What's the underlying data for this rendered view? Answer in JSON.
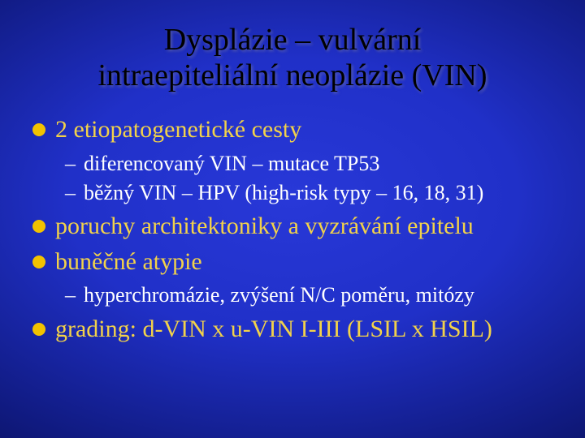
{
  "slide": {
    "background": {
      "type": "radial-gradient",
      "center_color": "#2838d8",
      "mid_color": "#101a80",
      "edge_color": "#060a40"
    },
    "title": {
      "line1": "Dysplázie – vulvární",
      "line2": "intraepiteliální neoplázie (VIN)",
      "color": "#000000",
      "fontsize": 38,
      "shadow_color": "#8888a0"
    },
    "bullets": [
      {
        "level": 1,
        "text": "2 etiopatogenetické cesty",
        "color": "#f2d24a",
        "marker": "round",
        "marker_color": "#f2c200",
        "fontsize": 30
      },
      {
        "level": 2,
        "text": "diferencovaný VIN – mutace TP53",
        "color": "#ffffff",
        "marker": "dash",
        "fontsize": 26
      },
      {
        "level": 2,
        "text": "běžný VIN – HPV (high-risk typy – 16, 18, 31)",
        "color": "#ffffff",
        "marker": "dash",
        "fontsize": 26
      },
      {
        "level": 1,
        "text": "poruchy architektoniky a vyzrávání epitelu",
        "color": "#f2d24a",
        "marker": "round",
        "marker_color": "#f2c200",
        "fontsize": 30
      },
      {
        "level": 1,
        "text": "buněčné atypie",
        "color": "#f2d24a",
        "marker": "round",
        "marker_color": "#f2c200",
        "fontsize": 30
      },
      {
        "level": 2,
        "text": "hyperchromázie, zvýšení N/C poměru, mitózy",
        "color": "#ffffff",
        "marker": "dash",
        "fontsize": 26
      },
      {
        "level": 1,
        "text": "grading: d-VIN x u-VIN I-III (LSIL x HSIL)",
        "color": "#f2d24a",
        "marker": "round",
        "marker_color": "#f2c200",
        "fontsize": 30
      }
    ]
  }
}
